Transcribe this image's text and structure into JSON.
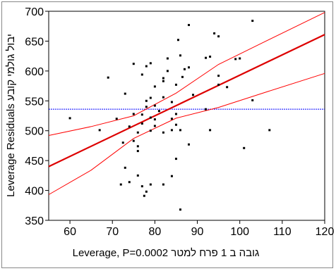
{
  "chart_data": {
    "type": "scatter",
    "title": "",
    "xlabel": "גובה ב 1 פרח למטר Leverage, P=0.0002",
    "ylabel": "Leverage Residuals יבול גולמי קובע",
    "xlim": [
      55,
      120
    ],
    "ylim": [
      350,
      700
    ],
    "x_ticks": [
      60,
      70,
      80,
      90,
      100,
      110,
      120
    ],
    "y_ticks": [
      350,
      400,
      450,
      500,
      550,
      600,
      650,
      700
    ],
    "grid": false,
    "mean_line": 536,
    "fit": {
      "x": [
        55,
        120
      ],
      "y": [
        440,
        661
      ]
    },
    "confidence_upper": [
      [
        55,
        492
      ],
      [
        65,
        507
      ],
      [
        75,
        525
      ],
      [
        85,
        563
      ],
      [
        95,
        611
      ],
      [
        105,
        646
      ],
      [
        120,
        698
      ]
    ],
    "confidence_lower": [
      [
        55,
        393
      ],
      [
        65,
        434
      ],
      [
        75,
        487
      ],
      [
        85,
        521
      ],
      [
        95,
        539
      ],
      [
        105,
        562
      ],
      [
        120,
        596
      ]
    ],
    "points": [
      [
        60,
        521
      ],
      [
        67,
        501
      ],
      [
        69,
        589
      ],
      [
        71,
        520
      ],
      [
        72,
        410
      ],
      [
        72.5,
        480
      ],
      [
        73,
        562
      ],
      [
        73,
        438
      ],
      [
        74,
        414
      ],
      [
        74,
        507
      ],
      [
        75,
        483
      ],
      [
        75,
        528
      ],
      [
        75,
        612
      ],
      [
        76,
        497
      ],
      [
        76,
        474
      ],
      [
        76,
        466
      ],
      [
        76,
        425
      ],
      [
        77,
        512
      ],
      [
        77,
        527
      ],
      [
        77,
        594
      ],
      [
        77,
        407
      ],
      [
        77.5,
        391
      ],
      [
        78,
        550
      ],
      [
        78,
        540
      ],
      [
        78,
        608
      ],
      [
        78,
        398
      ],
      [
        79,
        522
      ],
      [
        79,
        555
      ],
      [
        79,
        500
      ],
      [
        79,
        613
      ],
      [
        79,
        410
      ],
      [
        80,
        519
      ],
      [
        80,
        508
      ],
      [
        80,
        574
      ],
      [
        80,
        542
      ],
      [
        81,
        533
      ],
      [
        82,
        588
      ],
      [
        82,
        583
      ],
      [
        82,
        556
      ],
      [
        82,
        497
      ],
      [
        82,
        410
      ],
      [
        83,
        600
      ],
      [
        83,
        621
      ],
      [
        84,
        548
      ],
      [
        84,
        520
      ],
      [
        84,
        501
      ],
      [
        84,
        424
      ],
      [
        85,
        577
      ],
      [
        85,
        510
      ],
      [
        85,
        528
      ],
      [
        85,
        453
      ],
      [
        85.5,
        652
      ],
      [
        86,
        626
      ],
      [
        86,
        501
      ],
      [
        86,
        368
      ],
      [
        86.5,
        590
      ],
      [
        87,
        603
      ],
      [
        88,
        677
      ],
      [
        88,
        606
      ],
      [
        88,
        477
      ],
      [
        89,
        560
      ],
      [
        92,
        536
      ],
      [
        92,
        622
      ],
      [
        93,
        624
      ],
      [
        93,
        501
      ],
      [
        94,
        663
      ],
      [
        95,
        658
      ],
      [
        95,
        592
      ],
      [
        95,
        577
      ],
      [
        97,
        573
      ],
      [
        99,
        620
      ],
      [
        100,
        621
      ],
      [
        101,
        471
      ],
      [
        103,
        684
      ],
      [
        103,
        551
      ],
      [
        107,
        501
      ]
    ]
  }
}
